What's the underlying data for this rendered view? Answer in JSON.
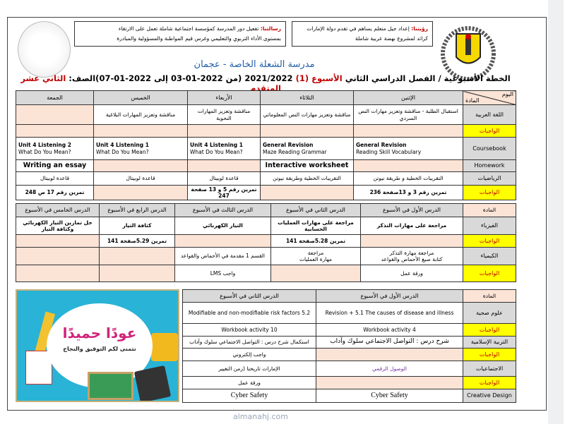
{
  "header": {
    "mission_label": "رسالتنا:",
    "mission_line1": "تفعيل دور المدرسة كمؤسسة اجتماعية شاملة تعمل على الارتقاء",
    "mission_line2": "بمستوى الأداء التربوي والتعليمي وغرس قيم المواطنة والمسؤولية والمبادرة",
    "vision_label": "رؤيتنا:",
    "vision_line1": "إعداد جيل متعلم يساهم في تقدم دولة الإمارات",
    "vision_line2": "كرائد لمشروع نهضة عربية شاملة",
    "school_name": "مدرسة الشعلة الخاصة - عجمان",
    "plan_title_a": "الخطة الأسبوعية / الفصل الدراسي الثاني",
    "plan_week": "الأسبوع (1)",
    "plan_year": "2021/2022",
    "plan_dates": "(من 2022-01-03 إلى 2022-01-07)الصف:",
    "plan_grade": "الثاني عشر المتقدم"
  },
  "table1": {
    "corner_day": "اليوم",
    "corner_subject": "المادة",
    "days": [
      "الإثنين",
      "الثلاثاء",
      "الأربعاء",
      "الخميس",
      "الجمعة"
    ],
    "rows": [
      {
        "subject": "اللغة العربية",
        "type": "subj",
        "cells": [
          "استقبال الطلبة - مناقشة وتعزيز مهارات النص السردي",
          "مناقشة وتعزيز مهارات النص المعلوماتي",
          "مناقشة وتعزيز المهارات النحوية",
          "مناقشة وتعزيز المهارات البلاغية",
          ""
        ]
      },
      {
        "subject": "الواجبات",
        "type": "hw",
        "cells": [
          "",
          "",
          "",
          "",
          ""
        ]
      },
      {
        "subject": "Coursebook",
        "type": "subj",
        "cells": [
          "General Revision\nReading Skill Vocabulary",
          "General Revision\nMaze Reading Grammar",
          "Unit 4 Listening 1\nWhat Do You Mean?",
          "Unit 4 Listening 1\nWhat Do You Mean?",
          "Unit 4 Listening  2\nWhat Do You Mean?"
        ]
      },
      {
        "subject": "Homework",
        "type": "plain",
        "cells": [
          "",
          "Interactive worksheet",
          "",
          "",
          "Writing an essay"
        ]
      },
      {
        "subject": "الرياضيات",
        "type": "plain",
        "cells": [
          "التقريبات الخطية و طريقة نيوتن",
          "التقريبات الخطية وطريقة نيوتن",
          "قاعدة لوبيتال",
          "قاعدة لوبيتال",
          "قاعدة لوبيتال"
        ]
      },
      {
        "subject": "الواجبات",
        "type": "hw",
        "cells": [
          "تمرين رقم 3  و 13صفحة 236",
          "",
          "تمرين رقم 5 و 13 صفحة 247",
          "",
          "تمرين رقم 17 ص  248"
        ]
      }
    ]
  },
  "table2": {
    "corner": "المادة",
    "lessons": [
      "الدرس الأول في الأسبوع",
      "الدرس الثاني في الأسبوع",
      "الدرس الثالث في الأسبوع",
      "الدرس الرابع في الأسبوع",
      "الدرس الخامس في الأسبوع"
    ],
    "rows": [
      {
        "subject": "الفيزياء",
        "type": "subj",
        "cells": [
          "مراجعة على مهارات التذكر",
          "مراجعة على مهارات العمليات الحسابية",
          "التيار الكهربائي",
          "كثافة التيار",
          "حل تمارين التيار الكهربائي وكثافة التيار"
        ]
      },
      {
        "subject": "الواجبات",
        "type": "hw",
        "cells": [
          "",
          "تمرين  5.28صفحة 141",
          "",
          "تمرين  5.29صفحة 141",
          ""
        ]
      },
      {
        "subject": "الكيمياء",
        "type": "subj",
        "cells": [
          "مراجعة مهارة التذكر\nكتابة صيغ الأحماض والقواعد",
          "مراجعة\nمهارة العمليات",
          "القسم 1 مقدمة في الأحماض والقواعد",
          "",
          ""
        ]
      },
      {
        "subject": "الواجبات",
        "type": "hw",
        "cells": [
          "ورقة عمل",
          "",
          "واجب LMS",
          "",
          ""
        ]
      }
    ]
  },
  "table3": {
    "corner": "المادة",
    "lessons": [
      "الدرس الأول في الأسبوع",
      "الدرس الثاني في الأسبوع"
    ],
    "rows": [
      {
        "subject": "علوم صحية",
        "type": "subj",
        "cells": [
          "Revision + 5.1 The causes of disease and illness",
          "5.2 Modifiable and non-modifiable risk factors"
        ]
      },
      {
        "subject": "الواجبات",
        "type": "hw",
        "cells": [
          "Workbook activity 4",
          "Workbook activity 10"
        ]
      },
      {
        "subject": "التربية الإسلامية",
        "type": "subj",
        "cells": [
          "شرح درس : التواصل الاجتماعي سلوك وآداب",
          "استكمال شرح درس : التواصل الاجتماعي سلوك وآداب"
        ]
      },
      {
        "subject": "الواجبات",
        "type": "hw",
        "cells": [
          "",
          "واجب إلكتروني"
        ]
      },
      {
        "subject": "الاجتماعيات",
        "type": "subj",
        "cells": [
          "الوصول الرقمي",
          "الإمارات تاريخنا (زمن التغيير"
        ]
      },
      {
        "subject": "الواجبات",
        "type": "hw",
        "cells": [
          "",
          "ورقة عمل"
        ]
      },
      {
        "subject": "Creative Design",
        "type": "subj",
        "cells": [
          "Cyber Safety",
          "Cyber Safety"
        ]
      }
    ]
  },
  "banner": {
    "title": "عودًا حميدًا",
    "subtitle": "نتمنى لكم التوفيق والنجاح"
  },
  "watermark": "almanahj.com"
}
